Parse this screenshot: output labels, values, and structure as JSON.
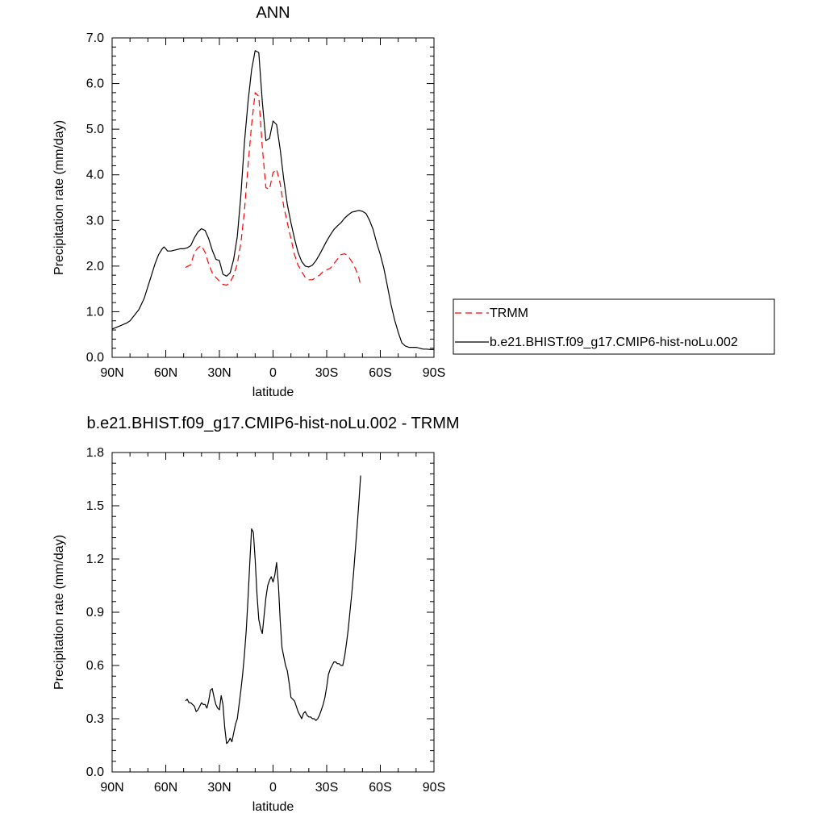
{
  "chart_data": [
    {
      "type": "line",
      "title": "ANN",
      "xlabel": "latitude",
      "ylabel": "Precipitation rate (mm/day)",
      "xlim": [
        90,
        -90
      ],
      "ylim": [
        0,
        7
      ],
      "xticks": [
        {
          "v": 90,
          "label": "90N"
        },
        {
          "v": 60,
          "label": "60N"
        },
        {
          "v": 30,
          "label": "30N"
        },
        {
          "v": 0,
          "label": "0"
        },
        {
          "v": -30,
          "label": "30S"
        },
        {
          "v": -60,
          "label": "60S"
        },
        {
          "v": -90,
          "label": "90S"
        }
      ],
      "yticks": [
        {
          "v": 0,
          "label": "0.0"
        },
        {
          "v": 1,
          "label": "1.0"
        },
        {
          "v": 2,
          "label": "2.0"
        },
        {
          "v": 3,
          "label": "3.0"
        },
        {
          "v": 4,
          "label": "4.0"
        },
        {
          "v": 5,
          "label": "5.0"
        },
        {
          "v": 6,
          "label": "6.0"
        },
        {
          "v": 7,
          "label": "7.0"
        }
      ],
      "legend": "right",
      "series": [
        {
          "name": "TRMM",
          "color": "#ff0000",
          "dash": "dashed",
          "x": [
            49,
            46,
            44,
            42,
            40,
            38,
            36,
            34,
            32,
            30,
            28,
            26,
            24,
            22,
            20,
            18,
            16,
            14,
            12,
            10,
            8,
            6,
            4,
            2,
            0,
            -2,
            -4,
            -6,
            -8,
            -10,
            -12,
            -14,
            -16,
            -18,
            -20,
            -22,
            -24,
            -26,
            -28,
            -30,
            -32,
            -34,
            -36,
            -38,
            -40,
            -42,
            -44,
            -46,
            -48,
            -49
          ],
          "y": [
            1.97,
            2.03,
            2.3,
            2.4,
            2.45,
            2.3,
            2.05,
            1.85,
            1.75,
            1.67,
            1.6,
            1.58,
            1.65,
            1.8,
            2.05,
            2.5,
            3.2,
            4.2,
            5.1,
            5.8,
            5.72,
            4.6,
            3.72,
            3.68,
            4.05,
            4.12,
            3.8,
            3.3,
            2.95,
            2.6,
            2.25,
            2.02,
            1.88,
            1.75,
            1.7,
            1.7,
            1.75,
            1.8,
            1.88,
            1.92,
            1.95,
            2.05,
            2.15,
            2.25,
            2.27,
            2.22,
            2.1,
            1.95,
            1.75,
            1.57
          ]
        },
        {
          "name": "b.e21.BHIST.f09_g17.CMIP6-hist-noLu.002",
          "color": "#000000",
          "dash": "solid",
          "x": [
            90,
            88,
            85,
            82,
            80,
            78,
            75,
            72,
            70,
            68,
            66,
            64,
            62,
            61,
            60,
            59,
            57,
            55,
            52,
            50,
            48,
            46,
            44,
            42,
            40,
            38,
            36,
            34,
            32,
            30,
            28,
            26,
            24,
            22,
            20,
            18,
            16,
            14,
            12,
            10,
            8,
            6,
            4,
            2,
            0,
            -2,
            -4,
            -6,
            -8,
            -10,
            -12,
            -14,
            -16,
            -18,
            -20,
            -22,
            -24,
            -26,
            -28,
            -30,
            -32,
            -34,
            -36,
            -38,
            -40,
            -42,
            -44,
            -46,
            -48,
            -50,
            -52,
            -54,
            -56,
            -58,
            -60,
            -62,
            -64,
            -66,
            -68,
            -70,
            -72,
            -74,
            -76,
            -78,
            -80,
            -82,
            -84,
            -86,
            -88,
            -90
          ],
          "y": [
            0.62,
            0.65,
            0.7,
            0.75,
            0.8,
            0.9,
            1.05,
            1.3,
            1.55,
            1.8,
            2.05,
            2.25,
            2.38,
            2.42,
            2.38,
            2.33,
            2.33,
            2.35,
            2.38,
            2.38,
            2.4,
            2.45,
            2.62,
            2.75,
            2.82,
            2.78,
            2.6,
            2.35,
            2.15,
            2.12,
            1.82,
            1.78,
            1.85,
            2.15,
            2.65,
            3.55,
            4.7,
            5.6,
            6.3,
            6.72,
            6.68,
            5.6,
            4.75,
            4.8,
            5.18,
            5.1,
            4.55,
            3.9,
            3.35,
            2.95,
            2.6,
            2.3,
            2.1,
            2.0,
            1.98,
            2.02,
            2.12,
            2.25,
            2.4,
            2.55,
            2.68,
            2.8,
            2.88,
            2.95,
            3.05,
            3.12,
            3.18,
            3.2,
            3.22,
            3.2,
            3.15,
            3.0,
            2.8,
            2.5,
            2.25,
            1.95,
            1.55,
            1.15,
            0.82,
            0.55,
            0.32,
            0.25,
            0.22,
            0.22,
            0.22,
            0.2,
            0.18,
            0.18,
            0.17,
            0.17
          ]
        }
      ]
    },
    {
      "type": "line",
      "title": "b.e21.BHIST.f09_g17.CMIP6-hist-noLu.002 - TRMM",
      "xlabel": "latitude",
      "ylabel": "Precipitation rate (mm/day)",
      "xlim": [
        90,
        -90
      ],
      "ylim": [
        0,
        1.8
      ],
      "xticks": [
        {
          "v": 90,
          "label": "90N"
        },
        {
          "v": 60,
          "label": "60N"
        },
        {
          "v": 30,
          "label": "30N"
        },
        {
          "v": 0,
          "label": "0"
        },
        {
          "v": -30,
          "label": "30S"
        },
        {
          "v": -60,
          "label": "60S"
        },
        {
          "v": -90,
          "label": "90S"
        }
      ],
      "yticks": [
        {
          "v": 0,
          "label": "0.0"
        },
        {
          "v": 0.3,
          "label": "0.3"
        },
        {
          "v": 0.6,
          "label": "0.6"
        },
        {
          "v": 0.9,
          "label": "0.9"
        },
        {
          "v": 1.2,
          "label": "1.2"
        },
        {
          "v": 1.5,
          "label": "1.5"
        },
        {
          "v": 1.8,
          "label": "1.8"
        }
      ],
      "series": [
        {
          "color": "#000000",
          "dash": "solid",
          "x": [
            49,
            48,
            47,
            46,
            45,
            44,
            43,
            42,
            41,
            40,
            39,
            38,
            37,
            36,
            35,
            34,
            33,
            32,
            31,
            30,
            29,
            28,
            27,
            26,
            25,
            24,
            23,
            22,
            21,
            20,
            19,
            18,
            17,
            16,
            15,
            14,
            13,
            12,
            11,
            10,
            9,
            8,
            7,
            6,
            5,
            4,
            3,
            2,
            1,
            0,
            -1,
            -2,
            -3,
            -4,
            -5,
            -6,
            -7,
            -8,
            -9,
            -10,
            -11,
            -12,
            -13,
            -14,
            -15,
            -16,
            -17,
            -18,
            -19,
            -20,
            -21,
            -22,
            -23,
            -24,
            -25,
            -26,
            -27,
            -28,
            -29,
            -30,
            -31,
            -32,
            -33,
            -34,
            -35,
            -36,
            -37,
            -38,
            -39,
            -40,
            -41,
            -42,
            -43,
            -44,
            -45,
            -46,
            -47,
            -48,
            -49
          ],
          "y": [
            0.4,
            0.41,
            0.39,
            0.39,
            0.38,
            0.37,
            0.34,
            0.35,
            0.37,
            0.39,
            0.38,
            0.38,
            0.36,
            0.4,
            0.46,
            0.47,
            0.42,
            0.38,
            0.36,
            0.35,
            0.43,
            0.38,
            0.25,
            0.16,
            0.17,
            0.19,
            0.17,
            0.22,
            0.27,
            0.3,
            0.38,
            0.46,
            0.55,
            0.66,
            0.8,
            0.98,
            1.18,
            1.37,
            1.35,
            1.2,
            1.0,
            0.86,
            0.81,
            0.78,
            0.88,
            0.98,
            1.05,
            1.08,
            1.1,
            1.07,
            1.11,
            1.18,
            1.05,
            0.85,
            0.7,
            0.65,
            0.6,
            0.57,
            0.5,
            0.42,
            0.41,
            0.4,
            0.37,
            0.34,
            0.32,
            0.3,
            0.33,
            0.34,
            0.32,
            0.31,
            0.31,
            0.3,
            0.3,
            0.29,
            0.3,
            0.32,
            0.35,
            0.38,
            0.42,
            0.48,
            0.55,
            0.58,
            0.6,
            0.62,
            0.62,
            0.61,
            0.61,
            0.6,
            0.6,
            0.65,
            0.72,
            0.8,
            0.9,
            1.0,
            1.12,
            1.25,
            1.38,
            1.52,
            1.67
          ]
        }
      ]
    }
  ]
}
